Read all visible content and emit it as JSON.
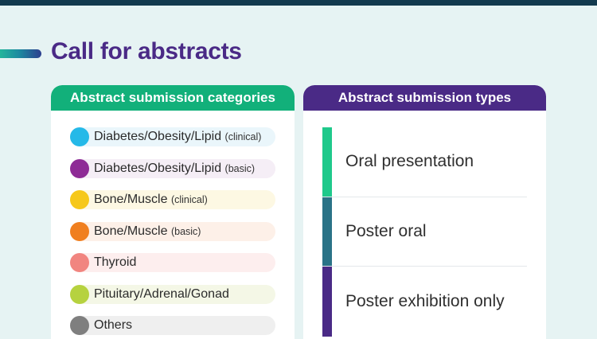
{
  "page": {
    "title": "Call for abstracts"
  },
  "categories_card": {
    "header": "Abstract submission categories",
    "items": [
      {
        "label": "Diabetes/Obesity/Lipid",
        "sub": "(clinical)",
        "dot_color": "#25b9e8",
        "pill_color": "#eaf6fb"
      },
      {
        "label": "Diabetes/Obesity/Lipid",
        "sub": "(basic)",
        "dot_color": "#8e2b96",
        "pill_color": "#f5eef6"
      },
      {
        "label": "Bone/Muscle",
        "sub": "(clinical)",
        "dot_color": "#f6c81a",
        "pill_color": "#fdf8e3"
      },
      {
        "label": "Bone/Muscle",
        "sub": "(basic)",
        "dot_color": "#f07f1f",
        "pill_color": "#fdf0e8"
      },
      {
        "label": "Thyroid",
        "sub": "",
        "dot_color": "#f18580",
        "pill_color": "#fdeeee"
      },
      {
        "label": "Pituitary/Adrenal/Gonad",
        "sub": "",
        "dot_color": "#b6d23f",
        "pill_color": "#f4f7e6"
      },
      {
        "label": "Others",
        "sub": "",
        "dot_color": "#7f7f7f",
        "pill_color": "#efefef"
      }
    ]
  },
  "types_card": {
    "header": "Abstract submission types",
    "items": [
      {
        "label": "Oral presentation",
        "bar_color": "#1fc98b"
      },
      {
        "label": "Poster oral",
        "bar_color": "#2a7387"
      },
      {
        "label": "Poster exhibition only",
        "bar_color": "#4a2a86"
      }
    ]
  }
}
